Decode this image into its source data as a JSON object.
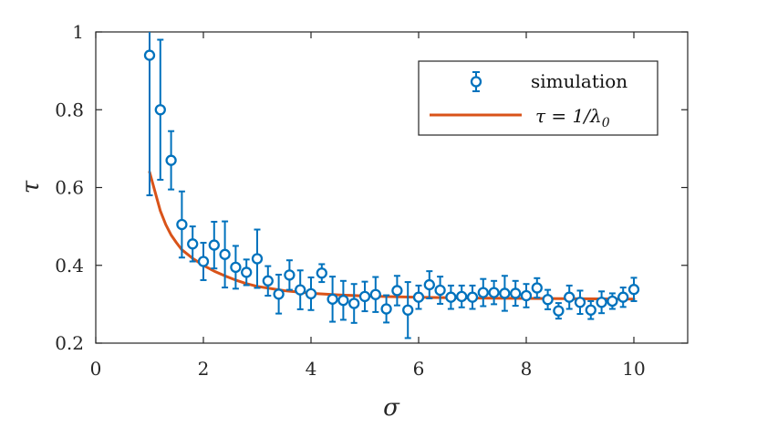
{
  "chart_data": {
    "type": "scatter",
    "title": "",
    "xlabel": "σ",
    "ylabel": "τ",
    "xlim": [
      0,
      11
    ],
    "ylim": [
      0.2,
      1
    ],
    "xticks": [
      0,
      2,
      4,
      6,
      8,
      10
    ],
    "yticks": [
      0.2,
      0.4,
      0.6,
      0.8,
      1
    ],
    "xtick_labels": [
      "0",
      "2",
      "4",
      "6",
      "8",
      "10"
    ],
    "ytick_labels": [
      "0.2",
      "0.4",
      "0.6",
      "0.8",
      "1"
    ],
    "grid": false,
    "legend_position": "top-right",
    "series": [
      {
        "name": "simulation",
        "style": "markers-with-errorbars",
        "color": "#0072BD",
        "x": [
          1.0,
          1.2,
          1.4,
          1.6,
          1.8,
          2.0,
          2.2,
          2.4,
          2.6,
          2.8,
          3.0,
          3.2,
          3.4,
          3.6,
          3.8,
          4.0,
          4.2,
          4.4,
          4.6,
          4.8,
          5.0,
          5.2,
          5.4,
          5.6,
          5.8,
          6.0,
          6.2,
          6.4,
          6.6,
          6.8,
          7.0,
          7.2,
          7.4,
          7.6,
          7.8,
          8.0,
          8.2,
          8.4,
          8.6,
          8.8,
          9.0,
          9.2,
          9.4,
          9.6,
          9.8,
          10.0
        ],
        "y": [
          0.94,
          0.8,
          0.67,
          0.505,
          0.455,
          0.41,
          0.452,
          0.428,
          0.395,
          0.382,
          0.417,
          0.36,
          0.326,
          0.375,
          0.337,
          0.327,
          0.38,
          0.313,
          0.31,
          0.302,
          0.32,
          0.325,
          0.288,
          0.335,
          0.285,
          0.318,
          0.35,
          0.336,
          0.318,
          0.32,
          0.318,
          0.33,
          0.33,
          0.328,
          0.328,
          0.322,
          0.342,
          0.312,
          0.283,
          0.318,
          0.305,
          0.285,
          0.305,
          0.308,
          0.318,
          0.338
        ],
        "err": [
          0.36,
          0.18,
          0.075,
          0.085,
          0.045,
          0.048,
          0.06,
          0.085,
          0.055,
          0.033,
          0.075,
          0.038,
          0.05,
          0.038,
          0.05,
          0.042,
          0.023,
          0.058,
          0.05,
          0.05,
          0.038,
          0.045,
          0.035,
          0.038,
          0.072,
          0.03,
          0.035,
          0.035,
          0.03,
          0.028,
          0.03,
          0.035,
          0.03,
          0.045,
          0.032,
          0.03,
          0.025,
          0.025,
          0.02,
          0.03,
          0.03,
          0.023,
          0.028,
          0.02,
          0.025,
          0.03
        ]
      },
      {
        "name": "τ = 1/λ₀",
        "style": "line",
        "color": "#D95319",
        "x": [
          1.0,
          1.1,
          1.2,
          1.3,
          1.4,
          1.5,
          1.6,
          1.8,
          2.0,
          2.2,
          2.4,
          2.6,
          2.8,
          3.0,
          3.5,
          4.0,
          4.5,
          5.0,
          6.0,
          7.0,
          8.0,
          9.0,
          10.0
        ],
        "y": [
          0.64,
          0.59,
          0.54,
          0.505,
          0.478,
          0.458,
          0.44,
          0.418,
          0.4,
          0.385,
          0.373,
          0.362,
          0.353,
          0.346,
          0.335,
          0.328,
          0.324,
          0.321,
          0.318,
          0.316,
          0.315,
          0.314,
          0.313
        ]
      }
    ],
    "legend": {
      "entries": [
        {
          "kind": "marker",
          "label": "simulation"
        },
        {
          "kind": "line",
          "lhs": "τ = 1/λ",
          "subscript": "0"
        }
      ]
    }
  }
}
